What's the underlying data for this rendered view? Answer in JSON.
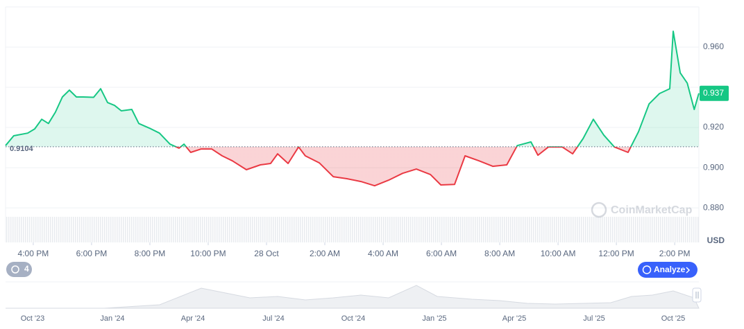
{
  "chart_data": {
    "type": "line",
    "x": [
      15.05,
      15.33,
      15.81,
      16.05,
      16.29,
      16.52,
      16.76,
      17.0,
      17.24,
      17.48,
      17.71,
      18.07,
      18.31,
      18.55,
      18.79,
      19.02,
      19.38,
      19.62,
      19.98,
      20.33,
      20.69,
      21.0,
      21.17,
      21.4,
      21.76,
      22.12,
      22.48,
      22.83,
      23.31,
      23.79,
      24.14,
      24.38,
      24.74,
      25.1,
      25.33,
      25.81,
      26.29,
      26.76,
      27.24,
      27.71,
      28.19,
      28.67,
      29.14,
      29.62,
      29.98,
      30.45,
      30.81,
      31.29,
      31.76,
      32.24,
      32.6,
      33.07,
      33.31,
      33.67,
      34.14,
      34.5,
      34.86,
      35.21,
      35.57,
      35.93,
      36.4,
      36.76,
      37.12,
      37.48,
      37.83,
      37.95,
      38.19,
      38.43,
      38.67,
      38.83
    ],
    "series": [
      {
        "values": [
          0.911,
          0.9159,
          0.9172,
          0.9193,
          0.9241,
          0.922,
          0.9276,
          0.9352,
          0.9386,
          0.9352,
          0.9352,
          0.935,
          0.9393,
          0.9324,
          0.931,
          0.9283,
          0.929,
          0.922,
          0.9197,
          0.9172,
          0.9117,
          0.9097,
          0.9117,
          0.9076,
          0.9093,
          0.9093,
          0.9059,
          0.9034,
          0.899,
          0.9014,
          0.9021,
          0.9069,
          0.9021,
          0.9103,
          0.9059,
          0.9024,
          0.8955,
          0.8945,
          0.8931,
          0.891,
          0.8938,
          0.8972,
          0.8993,
          0.8966,
          0.8914,
          0.8917,
          0.9059,
          0.9034,
          0.9007,
          0.9014,
          0.911,
          0.9128,
          0.9062,
          0.9103,
          0.9103,
          0.9069,
          0.9145,
          0.9241,
          0.9162,
          0.9103,
          0.9076,
          0.9179,
          0.9317,
          0.9369,
          0.9393,
          0.9679,
          0.9472,
          0.9421,
          0.929,
          0.937
        ]
      }
    ],
    "up_color": "#16c784",
    "down_color": "#ea3943",
    "baseline": 0.9104,
    "last_price": 0.937,
    "xlim": [
      15.05,
      38.83
    ],
    "xticks": [
      {
        "value": 16,
        "label": "4:00 PM"
      },
      {
        "value": 18,
        "label": "6:00 PM"
      },
      {
        "value": 20,
        "label": "8:00 PM"
      },
      {
        "value": 22,
        "label": "10:00 PM"
      },
      {
        "value": 24,
        "label": "28 Oct"
      },
      {
        "value": 26,
        "label": "2:00 AM"
      },
      {
        "value": 28,
        "label": "4:00 AM"
      },
      {
        "value": 30,
        "label": "6:00 AM"
      },
      {
        "value": 32,
        "label": "8:00 AM"
      },
      {
        "value": 34,
        "label": "10:00 AM"
      },
      {
        "value": 36,
        "label": "12:00 PM"
      },
      {
        "value": 38,
        "label": "2:00 PM"
      }
    ],
    "ylim": [
      0.8628,
      0.98
    ],
    "yticks": [
      {
        "value": 0.88,
        "label": "0.880"
      },
      {
        "value": 0.9,
        "label": "0.900"
      },
      {
        "value": 0.92,
        "label": "0.920"
      },
      {
        "value": 0.96,
        "label": "0.960"
      }
    ],
    "grid": true,
    "y_unit": "USD",
    "watermark": "CoinMarketCap"
  },
  "navigator": {
    "labels": [
      "Oct '23",
      "Jan '24",
      "Apr '24",
      "Jul '24",
      "Oct '24",
      "Jan '25",
      "Apr '25",
      "Jul '25",
      "Oct '25"
    ]
  },
  "controls": {
    "history_count": "4",
    "analyze": "Analyze"
  }
}
